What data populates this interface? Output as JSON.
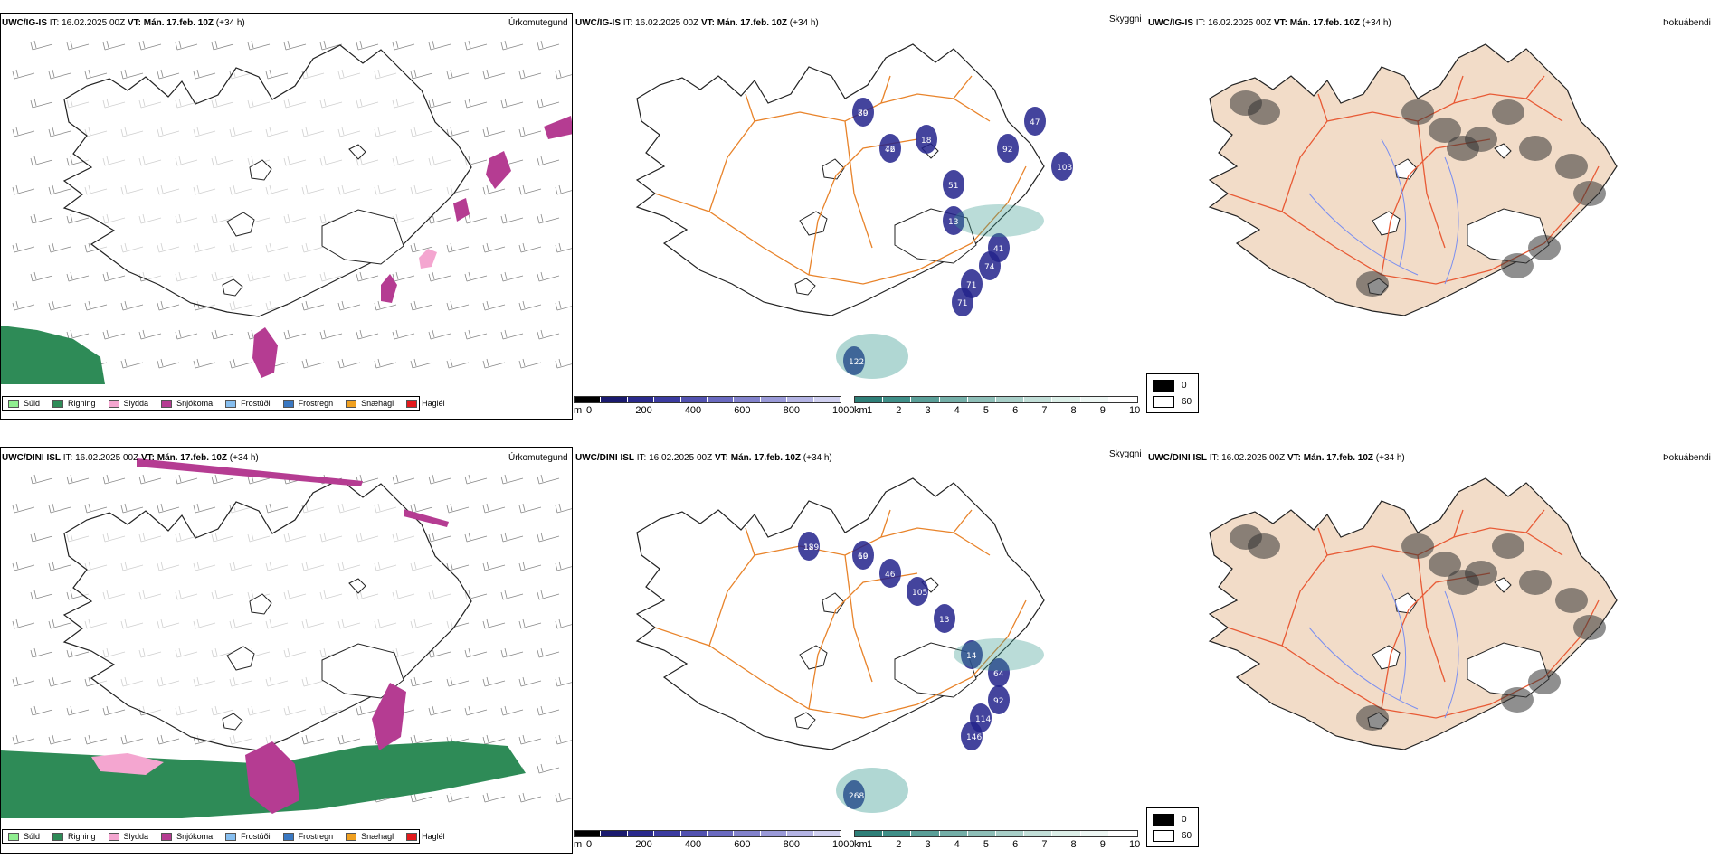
{
  "panels": {
    "top_left": {
      "model": "UWC/IG-IS",
      "it": "IT: 16.02.2025 00Z",
      "vt": "VT: Mán. 17.feb. 10Z",
      "lead": "(+34 h)",
      "title": "Úrkomutegund"
    },
    "top_mid": {
      "model": "UWC/IG-IS",
      "it": "IT: 16.02.2025 00Z",
      "vt": "VT: Mán. 17.feb. 10Z",
      "lead": "(+34 h)",
      "title": "Skyggni",
      "labels": [
        "70",
        "42",
        "18",
        "51",
        "92",
        "47",
        "103",
        "13",
        "41",
        "74",
        "71",
        "71",
        "122",
        "89",
        "76"
      ]
    },
    "top_right": {
      "model": "UWC/IG-IS",
      "it": "IT: 16.02.2025 00Z",
      "vt": "VT: Mán. 17.feb. 10Z",
      "lead": "(+34 h)",
      "title": "Þokuábendi"
    },
    "bottom_left": {
      "model": "UWC/DINI ISL",
      "it": "IT: 16.02.2025 00Z",
      "vt": "VT: Mán. 17.feb. 10Z",
      "lead": "(+34 h)",
      "title": "Úrkomutegund"
    },
    "bottom_mid": {
      "model": "UWC/DINI ISL",
      "it": "IT: 16.02.2025 00Z",
      "vt": "VT: Mán. 17.feb. 10Z",
      "lead": "(+34 h)",
      "title": "Skyggni",
      "labels": [
        "12",
        "60",
        "46",
        "105",
        "13",
        "14",
        "64",
        "92",
        "114",
        "146",
        "268",
        "189",
        "19"
      ]
    },
    "bottom_right": {
      "model": "UWC/DINI ISL",
      "it": "IT: 16.02.2025 00Z",
      "vt": "VT: Mán. 17.feb. 10Z",
      "lead": "(+34 h)",
      "title": "Þokuábendi"
    }
  },
  "precip_legend": [
    {
      "label": "Súld",
      "color": "#90ee90"
    },
    {
      "label": "Rigning",
      "color": "#2e8b57"
    },
    {
      "label": "Slydda",
      "color": "#f4a6d0"
    },
    {
      "label": "Snjókoma",
      "color": "#b53c92"
    },
    {
      "label": "Frostúði",
      "color": "#87bff0"
    },
    {
      "label": "Frostregn",
      "color": "#3a78c2"
    },
    {
      "label": "Snæhagl",
      "color": "#f0a020"
    },
    {
      "label": "Haglél",
      "color": "#e31a1c"
    }
  ],
  "ceiling_bar": {
    "unit": "m",
    "ticks": [
      "0",
      "200",
      "400",
      "600",
      "800",
      "1000"
    ]
  },
  "visibility_bar": {
    "unit": "km",
    "ticks": [
      "1",
      "2",
      "3",
      "4",
      "5",
      "6",
      "7",
      "8",
      "9",
      "10"
    ]
  },
  "fog_legend": {
    "low": "0",
    "high": "60"
  },
  "colors": {
    "coast": "#222222",
    "road": "#e8832a",
    "land_fog": "#f2dcc8",
    "rain": "#2e8b57",
    "snow": "#b53c92",
    "vis_low": "#23238c",
    "vis_teal": "#3a9a90"
  }
}
